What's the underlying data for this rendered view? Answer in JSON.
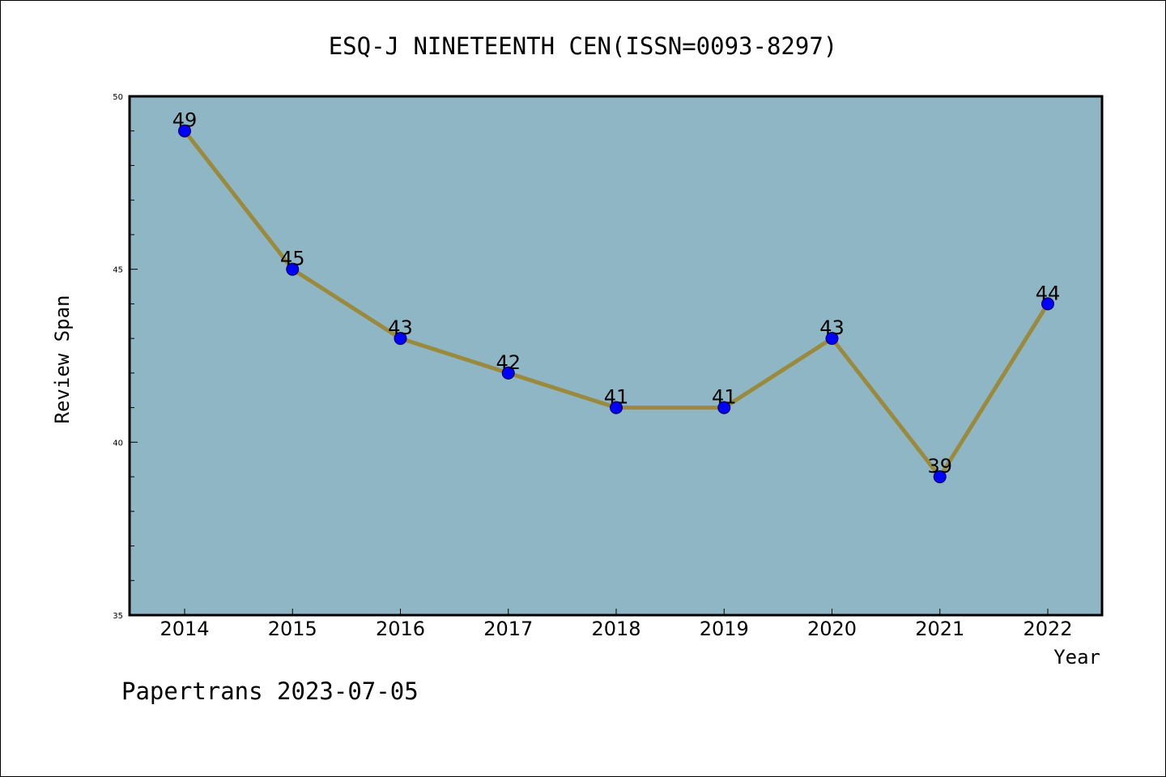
{
  "chart_data": {
    "type": "line",
    "title": "ESQ-J NINETEENTH CEN(ISSN=0093-8297)",
    "xlabel": "Year",
    "ylabel": "Review Span",
    "categories": [
      "2014",
      "2015",
      "2016",
      "2017",
      "2018",
      "2019",
      "2020",
      "2021",
      "2022"
    ],
    "series": [
      {
        "values": [
          49,
          45,
          43,
          42,
          41,
          41,
          43,
          39,
          44
        ],
        "data_labels": [
          "49",
          "45",
          "43",
          "42",
          "41",
          "41",
          "43",
          "39",
          "44"
        ]
      }
    ],
    "ylim": [
      35,
      50
    ],
    "yticks": [
      "35",
      "40",
      "45",
      "50"
    ],
    "grid": false,
    "legend": "none",
    "colors": {
      "plot_background": "#8fb6c5",
      "line": "#9a8a3d",
      "marker": "#0000ff",
      "marker_edge": "#000044"
    }
  },
  "footer": {
    "text": "Papertrans 2023-07-05"
  }
}
